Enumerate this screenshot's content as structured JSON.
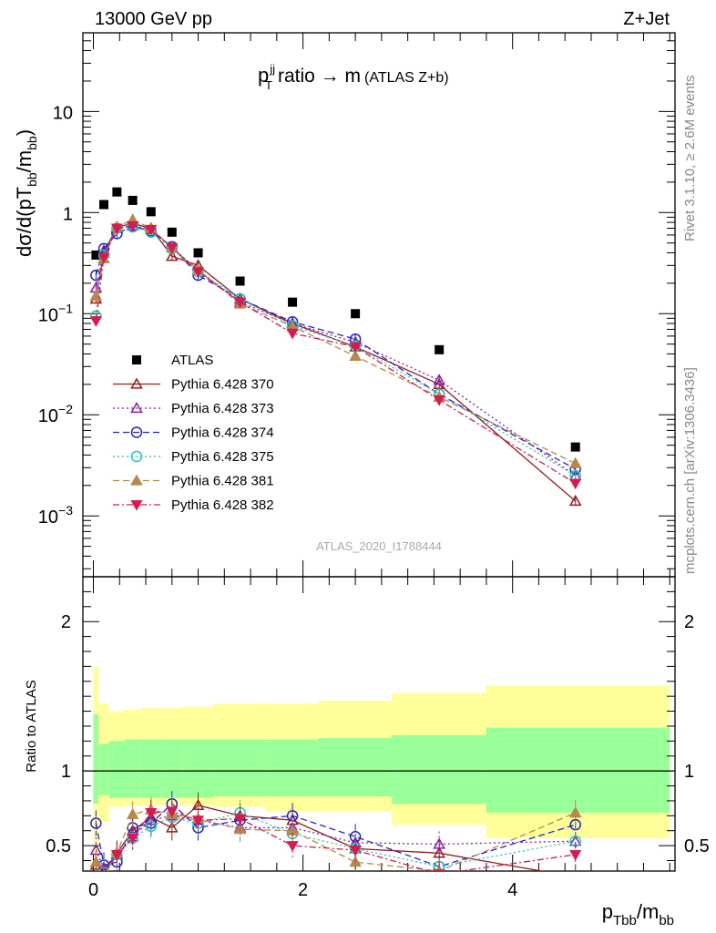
{
  "header": {
    "left": "13000 GeV pp",
    "right": "Z+Jet"
  },
  "side_text": {
    "rivet": "Rivet 3.1.10, ≥ 2.6M events",
    "mcplots": "mcplots.cern.ch [arXiv:1306.3436]"
  },
  "colors": {
    "ATLAS": "#000000",
    "Pythia 6.428 370": "#9b1b1b",
    "Pythia 6.428 373": "#8a1ab8",
    "Pythia 6.428 374": "#2424cc",
    "Pythia 6.428 375": "#20c8b8",
    "Pythia 6.428 381": "#b8874a",
    "Pythia 6.428 382": "#d81a50",
    "band_inner": "#99ff99",
    "band_outer": "#ffff99"
  },
  "chart_data": [
    {
      "type": "line",
      "title": "p_T^jj ratio → m (ATLAS Z+b)",
      "ylabel": "dσ/d(pT_bb/m_bb)",
      "annotation": "ATLAS_2020_I1788444",
      "ylog": true,
      "xlim": [
        -0.1,
        5.55
      ],
      "ylim": [
        0.00025,
        60
      ],
      "yticks": [
        {
          "v": 0.001,
          "m": "10",
          "e": "−3"
        },
        {
          "v": 0.01,
          "m": "10",
          "e": "−2"
        },
        {
          "v": 0.1,
          "m": "10",
          "e": "−1"
        },
        {
          "v": 1,
          "m": "1",
          "e": ""
        },
        {
          "v": 10,
          "m": "10",
          "e": ""
        }
      ],
      "legend_position": "left-middle",
      "x": [
        0.025,
        0.1,
        0.225,
        0.375,
        0.55,
        0.75,
        1.0,
        1.4,
        1.9,
        2.5,
        3.3,
        4.6
      ],
      "series": [
        {
          "name": "ATLAS",
          "marker": "square",
          "line": "none",
          "values": [
            0.38,
            1.2,
            1.6,
            1.32,
            1.02,
            0.64,
            0.4,
            0.21,
            0.13,
            0.1,
            0.044,
            0.0048
          ]
        },
        {
          "name": "Pythia 6.428 370",
          "marker": "triangle-open",
          "line": "solid",
          "values": [
            0.14,
            0.4,
            0.72,
            0.78,
            0.7,
            0.37,
            0.3,
            0.14,
            0.08,
            0.047,
            0.02,
            0.0014
          ]
        },
        {
          "name": "Pythia 6.428 373",
          "marker": "triangle-open",
          "line": "dotted",
          "values": [
            0.18,
            0.42,
            0.7,
            0.74,
            0.68,
            0.45,
            0.27,
            0.13,
            0.08,
            0.052,
            0.022,
            0.0025
          ]
        },
        {
          "name": "Pythia 6.428 374",
          "marker": "circle-open",
          "line": "dashed",
          "values": [
            0.24,
            0.44,
            0.62,
            0.73,
            0.66,
            0.46,
            0.24,
            0.14,
            0.083,
            0.056,
            0.016,
            0.0029
          ]
        },
        {
          "name": "Pythia 6.428 375",
          "marker": "circle-open",
          "line": "dotted",
          "values": [
            0.095,
            0.38,
            0.7,
            0.72,
            0.64,
            0.44,
            0.26,
            0.14,
            0.076,
            0.048,
            0.016,
            0.0025
          ]
        },
        {
          "name": "Pythia 6.428 381",
          "marker": "triangle-filled",
          "line": "dashed",
          "values": [
            0.15,
            0.35,
            0.72,
            0.85,
            0.7,
            0.45,
            0.27,
            0.125,
            0.075,
            0.038,
            0.015,
            0.0033
          ]
        },
        {
          "name": "Pythia 6.428 382",
          "marker": "triangle-down-filled",
          "line": "dashdot",
          "values": [
            0.085,
            0.36,
            0.7,
            0.74,
            0.68,
            0.45,
            0.26,
            0.13,
            0.064,
            0.047,
            0.014,
            0.0021
          ]
        }
      ]
    },
    {
      "type": "line",
      "ylabel": "Ratio to ATLAS",
      "xlabel": "p_Tbb/m_bb",
      "xlim": [
        -0.1,
        5.55
      ],
      "ylim": [
        0.33,
        2.3
      ],
      "yticks": [
        {
          "v": 0.5,
          "label": "0.5"
        },
        {
          "v": 1,
          "label": "1"
        },
        {
          "v": 2,
          "label": "2"
        }
      ],
      "xticks": [
        {
          "v": 0,
          "label": "0"
        },
        {
          "v": 2,
          "label": "2"
        },
        {
          "v": 4,
          "label": "4"
        }
      ],
      "bands": {
        "edges": [
          0,
          0.05,
          0.15,
          0.3,
          0.45,
          0.65,
          0.85,
          1.15,
          1.65,
          2.15,
          2.85,
          3.75,
          5.5
        ],
        "inner_lo": [
          0.78,
          0.84,
          0.82,
          0.82,
          0.82,
          0.82,
          0.82,
          0.83,
          0.83,
          0.83,
          0.78,
          0.72
        ],
        "inner_hi": [
          1.38,
          1.18,
          1.2,
          1.21,
          1.21,
          1.21,
          1.21,
          1.21,
          1.21,
          1.22,
          1.24,
          1.29
        ],
        "outer_lo": [
          0.42,
          0.66,
          0.76,
          0.77,
          0.77,
          0.77,
          0.77,
          0.76,
          0.73,
          0.73,
          0.64,
          0.55
        ],
        "outer_hi": [
          1.7,
          1.45,
          1.4,
          1.41,
          1.42,
          1.42,
          1.43,
          1.45,
          1.45,
          1.47,
          1.52,
          1.57
        ]
      },
      "series": [
        {
          "name": "Pythia 6.428 370",
          "values": [
            0.37,
            0.33,
            0.45,
            0.6,
            0.69,
            0.62,
            0.77,
            0.7,
            0.67,
            0.48,
            0.45,
            0.29
          ]
        },
        {
          "name": "Pythia 6.428 373",
          "values": [
            0.47,
            0.35,
            0.44,
            0.56,
            0.67,
            0.7,
            0.67,
            0.62,
            0.62,
            0.52,
            0.51,
            0.53
          ]
        },
        {
          "name": "Pythia 6.428 374",
          "values": [
            0.65,
            0.37,
            0.39,
            0.62,
            0.65,
            0.78,
            0.62,
            0.67,
            0.7,
            0.56,
            0.36,
            0.64
          ]
        },
        {
          "name": "Pythia 6.428 375",
          "values": [
            0.25,
            0.32,
            0.44,
            0.55,
            0.63,
            0.69,
            0.65,
            0.72,
            0.58,
            0.48,
            0.36,
            0.53
          ]
        },
        {
          "name": "Pythia 6.428 381",
          "values": [
            0.39,
            0.29,
            0.45,
            0.71,
            0.74,
            0.71,
            0.68,
            0.61,
            0.6,
            0.39,
            0.33,
            0.72
          ]
        },
        {
          "name": "Pythia 6.428 382",
          "values": [
            0.22,
            0.3,
            0.44,
            0.55,
            0.72,
            0.73,
            0.67,
            0.68,
            0.5,
            0.47,
            0.31,
            0.44
          ]
        }
      ]
    }
  ]
}
